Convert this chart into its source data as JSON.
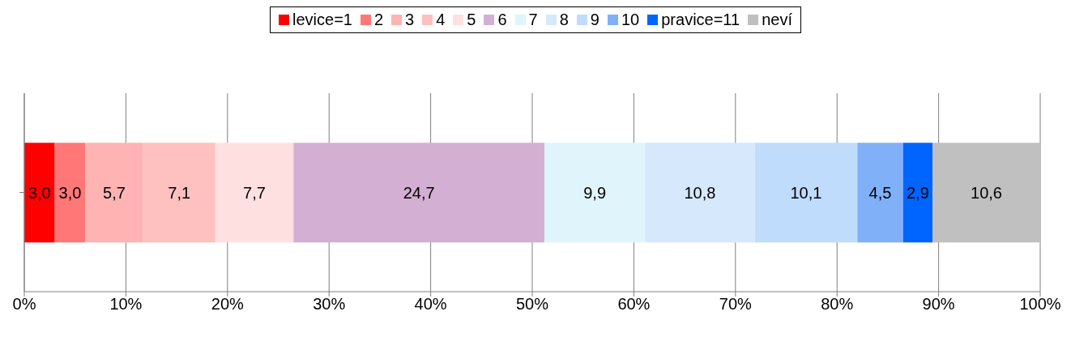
{
  "chart_data": {
    "type": "bar",
    "orientation": "horizontal",
    "stacked": true,
    "categories": [
      null
    ],
    "series": [
      {
        "name": "levice=1",
        "color": "#ff0000",
        "values": [
          3.0
        ],
        "value_labels": [
          "3,0"
        ]
      },
      {
        "name": "2",
        "color": "#ff7777",
        "values": [
          3.0
        ],
        "value_labels": [
          "3,0"
        ]
      },
      {
        "name": "3",
        "color": "#ffb3b3",
        "values": [
          5.7
        ],
        "value_labels": [
          "5,7"
        ]
      },
      {
        "name": "4",
        "color": "#ffc0c0",
        "values": [
          7.1
        ],
        "value_labels": [
          "7,1"
        ]
      },
      {
        "name": "5",
        "color": "#ffe0e0",
        "values": [
          7.7
        ],
        "value_labels": [
          "7,7"
        ]
      },
      {
        "name": "6",
        "color": "#d3b0d3",
        "values": [
          24.7
        ],
        "value_labels": [
          "24,7"
        ]
      },
      {
        "name": "7",
        "color": "#e0f4fc",
        "values": [
          9.9
        ],
        "value_labels": [
          "9,9"
        ]
      },
      {
        "name": "8",
        "color": "#d6e8fc",
        "values": [
          10.8
        ],
        "value_labels": [
          "10,8"
        ]
      },
      {
        "name": "9",
        "color": "#c0dcfc",
        "values": [
          10.1
        ],
        "value_labels": [
          "10,1"
        ]
      },
      {
        "name": "10",
        "color": "#80b0f8",
        "values": [
          4.5
        ],
        "value_labels": [
          "4,5"
        ]
      },
      {
        "name": "pravice=11",
        "color": "#0064ff",
        "values": [
          2.9
        ],
        "value_labels": [
          "2,9"
        ]
      },
      {
        "name": "neví",
        "color": "#c0c0c0",
        "values": [
          10.6
        ],
        "value_labels": [
          "10,6"
        ]
      }
    ],
    "xlim": [
      0,
      100
    ],
    "xticks": [
      {
        "value": 0,
        "label": "0%"
      },
      {
        "value": 10,
        "label": "10%"
      },
      {
        "value": 20,
        "label": "20%"
      },
      {
        "value": 30,
        "label": "30%"
      },
      {
        "value": 40,
        "label": "40%"
      },
      {
        "value": 50,
        "label": "50%"
      },
      {
        "value": 60,
        "label": "60%"
      },
      {
        "value": 70,
        "label": "70%"
      },
      {
        "value": 80,
        "label": "80%"
      },
      {
        "value": 90,
        "label": "90%"
      },
      {
        "value": 100,
        "label": "100%"
      }
    ],
    "grid": "x",
    "legend": "top"
  }
}
